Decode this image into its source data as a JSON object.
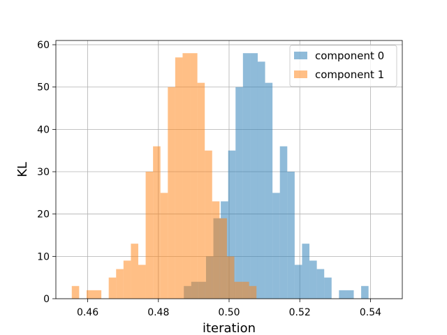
{
  "chart_data": {
    "type": "histogram",
    "title": "",
    "xlabel": "iteration",
    "ylabel": "KL",
    "xlim": [
      0.451,
      0.549
    ],
    "ylim": [
      0,
      61
    ],
    "xticks": [
      0.46,
      0.48,
      0.5,
      0.52,
      0.54
    ],
    "xtick_labels": [
      "0.46",
      "0.48",
      "0.50",
      "0.52",
      "0.54"
    ],
    "yticks": [
      0,
      10,
      20,
      30,
      40,
      50,
      60
    ],
    "ytick_labels": [
      "0",
      "10",
      "20",
      "30",
      "40",
      "50",
      "60"
    ],
    "grid": true,
    "legend_position": "upper right",
    "series": [
      {
        "name": "component 0",
        "color": "#1f77b4",
        "alpha": 0.5,
        "bin_start": 0.4872,
        "bin_width": 0.00209,
        "counts": [
          3,
          4,
          4,
          10,
          19,
          23,
          35,
          50,
          58,
          58,
          56,
          51,
          25,
          36,
          30,
          8,
          13,
          9,
          7,
          5,
          0,
          2,
          2,
          0,
          3
        ]
      },
      {
        "name": "component 1",
        "color": "#ff7f0e",
        "alpha": 0.5,
        "bin_start": 0.4555,
        "bin_width": 0.00209,
        "counts": [
          3,
          0,
          2,
          2,
          0,
          5,
          7,
          9,
          13,
          8,
          30,
          36,
          25,
          50,
          57,
          58,
          58,
          51,
          35,
          23,
          19,
          10,
          4,
          4,
          3
        ]
      }
    ]
  }
}
